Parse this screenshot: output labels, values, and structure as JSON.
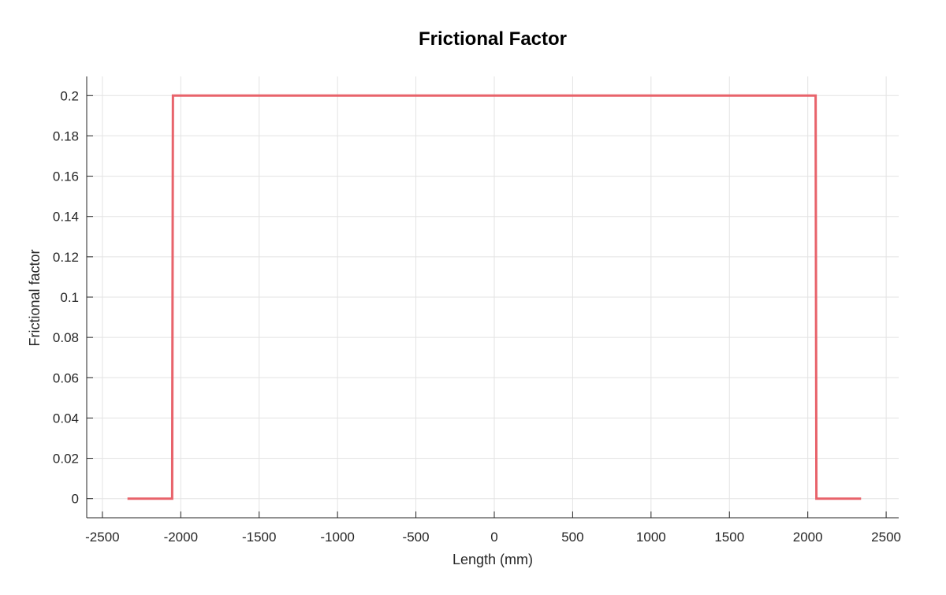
{
  "chart_data": {
    "type": "line",
    "title": "Frictional Factor",
    "xlabel": "Length (mm)",
    "ylabel": "Frictional factor",
    "xlim": [
      -2600,
      2580
    ],
    "ylim": [
      -0.0095,
      0.2095
    ],
    "xticks": [
      -2500,
      -2000,
      -1500,
      -1000,
      -500,
      0,
      500,
      1000,
      1500,
      2000,
      2500
    ],
    "xtick_labels": [
      "-2500",
      "-2000",
      "-1500",
      "-1000",
      "-500",
      "0",
      "500",
      "1000",
      "1500",
      "2000",
      "2500"
    ],
    "yticks": [
      0,
      0.02,
      0.04,
      0.06,
      0.08,
      0.1,
      0.12,
      0.14,
      0.16,
      0.18,
      0.2
    ],
    "ytick_labels": [
      "0",
      "0.02",
      "0.04",
      "0.06",
      "0.08",
      "0.1",
      "0.12",
      "0.14",
      "0.16",
      "0.18",
      "0.2"
    ],
    "grid": true,
    "series": [
      {
        "color": "#e8636b",
        "x": [
          -2340,
          -2055,
          -2050,
          2050,
          2055,
          2340
        ],
        "y": [
          0,
          0,
          0.2,
          0.2,
          0,
          0
        ]
      }
    ]
  }
}
